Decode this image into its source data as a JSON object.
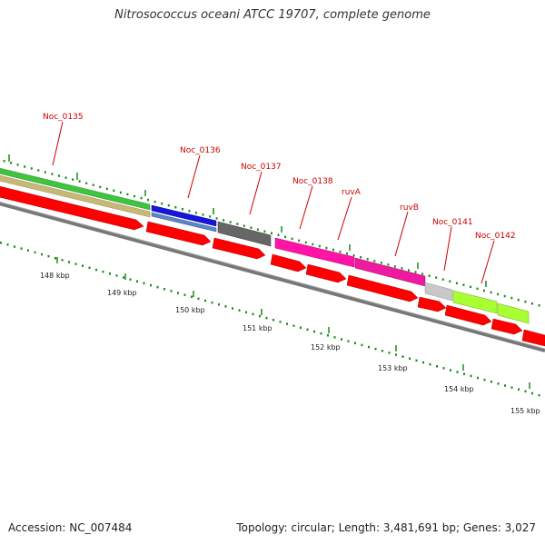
{
  "header": {
    "title": "Nitrosococcus oceani ATCC 19707, complete genome"
  },
  "footer": {
    "accession": "Accession: NC_007484",
    "stats": "Topology: circular; Length: 3,481,691 bp; Genes: 3,027"
  },
  "colors": {
    "label": "#cc0000",
    "backbone": "#777777",
    "cds": "#ff0000",
    "tick": "#1a8a1a"
  },
  "gene_labels": [
    "Noc_0135",
    "Noc_0136",
    "Noc_0137",
    "Noc_0138",
    "ruvA",
    "ruvB",
    "Noc_0141",
    "Noc_0142"
  ],
  "kbp_labels": [
    "148 kbp",
    "149 kbp",
    "150 kbp",
    "151 kbp",
    "152 kbp",
    "153 kbp",
    "154 kbp",
    "155 kbp"
  ]
}
